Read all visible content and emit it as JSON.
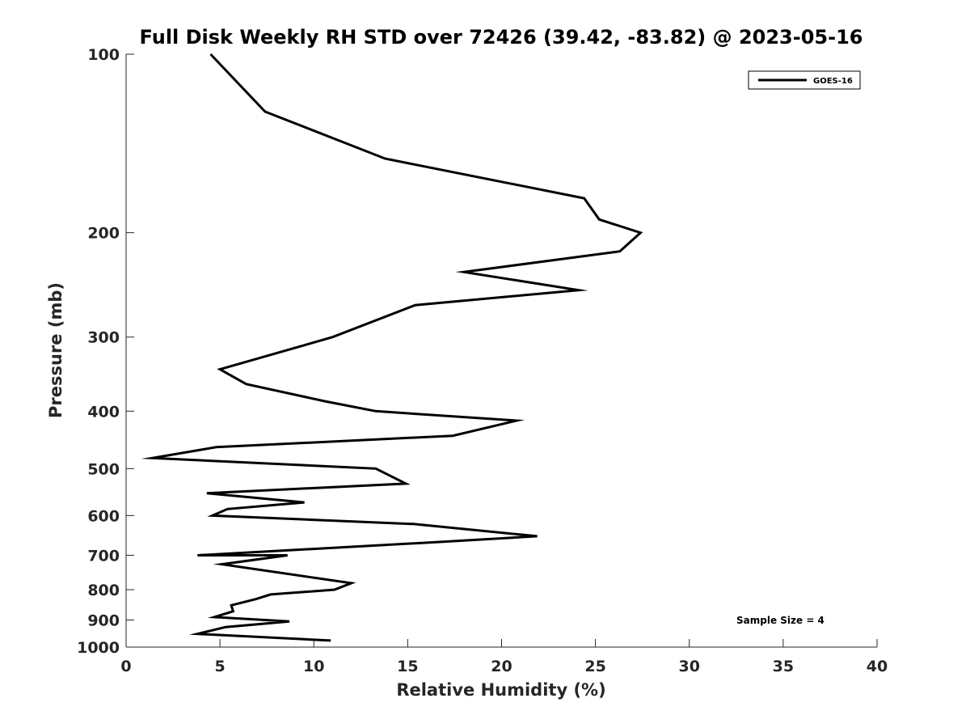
{
  "chart_data": {
    "type": "line",
    "title": "Full Disk Weekly RH STD over 72426 (39.42, -83.82) @ 2023-05-16",
    "xlabel": "Relative Humidity (%)",
    "ylabel": "Pressure (mb)",
    "xlim": [
      0,
      40
    ],
    "ylim": [
      100,
      1000
    ],
    "y_scale": "log",
    "y_reversed": true,
    "x_ticks": [
      0,
      5,
      10,
      15,
      20,
      25,
      30,
      35,
      40
    ],
    "y_ticks": [
      100,
      200,
      300,
      400,
      500,
      600,
      700,
      800,
      900,
      1000
    ],
    "grid": false,
    "legend_position": "top-right",
    "annotation": "Sample Size = 4",
    "series": [
      {
        "name": "GOES-16",
        "color": "#000000",
        "points": [
          [
            4.5,
            100
          ],
          [
            7.4,
            125
          ],
          [
            13.8,
            150
          ],
          [
            24.4,
            175
          ],
          [
            25.2,
            190
          ],
          [
            27.4,
            200
          ],
          [
            26.3,
            215
          ],
          [
            18.0,
            233
          ],
          [
            24.1,
            250
          ],
          [
            15.4,
            265
          ],
          [
            11.0,
            300
          ],
          [
            5.0,
            340
          ],
          [
            6.4,
            360
          ],
          [
            10.6,
            385
          ],
          [
            13.3,
            400
          ],
          [
            20.8,
            415
          ],
          [
            17.4,
            440
          ],
          [
            4.8,
            460
          ],
          [
            1.4,
            480
          ],
          [
            13.3,
            500
          ],
          [
            14.9,
            530
          ],
          [
            4.3,
            550
          ],
          [
            9.5,
            570
          ],
          [
            5.4,
            585
          ],
          [
            4.6,
            600
          ],
          [
            15.3,
            620
          ],
          [
            21.9,
            650
          ],
          [
            16.6,
            665
          ],
          [
            3.8,
            700
          ],
          [
            8.6,
            700
          ],
          [
            5.1,
            725
          ],
          [
            12.0,
            780
          ],
          [
            11.1,
            800
          ],
          [
            7.7,
            815
          ],
          [
            6.9,
            830
          ],
          [
            5.6,
            850
          ],
          [
            5.7,
            870
          ],
          [
            4.7,
            890
          ],
          [
            8.7,
            905
          ],
          [
            5.3,
            925
          ],
          [
            3.8,
            950
          ],
          [
            10.9,
            975
          ]
        ]
      }
    ]
  }
}
